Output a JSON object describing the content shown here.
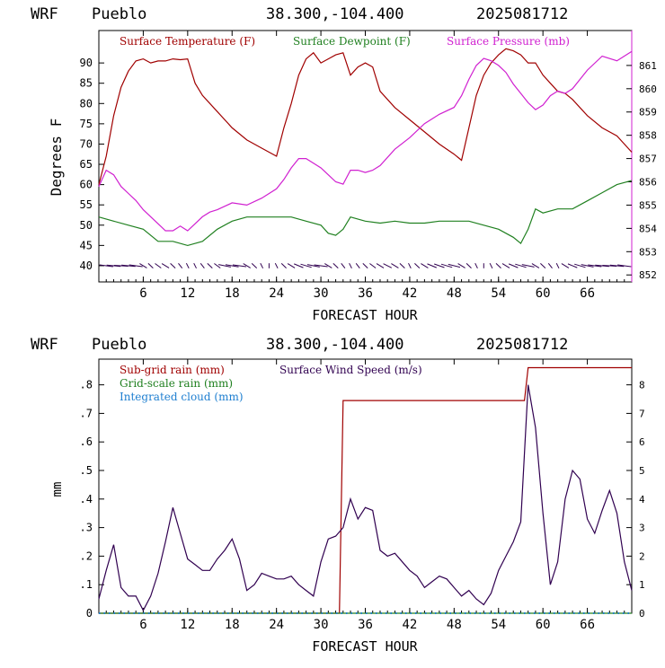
{
  "charts": [
    {
      "header": {
        "model": "WRF",
        "station": "Pueblo",
        "coords": "38.300,-104.400",
        "run": "2025081712"
      },
      "xlabel": "FORECAST HOUR",
      "ylabel": "Degrees F",
      "legend": [
        {
          "label": "Surface Temperature (F)",
          "color": "#a00000"
        },
        {
          "label": "Surface Dewpoint (F)",
          "color": "#208020"
        },
        {
          "label": "Surface Pressure (mb)",
          "color": "#d020d0"
        }
      ]
    },
    {
      "header": {
        "model": "WRF",
        "station": "Pueblo",
        "coords": "38.300,-104.400",
        "run": "2025081712"
      },
      "xlabel": "FORECAST HOUR",
      "ylabel": "mm",
      "legend": [
        {
          "label": "Sub-grid rain (mm)",
          "color": "#a00000"
        },
        {
          "label": "Grid-scale rain (mm)",
          "color": "#208020"
        },
        {
          "label": "Integrated cloud (mm)",
          "color": "#1f7fd0"
        },
        {
          "label": "Surface Wind Speed (m/s)",
          "color": "#300050"
        }
      ]
    }
  ],
  "chart_data": [
    {
      "type": "line",
      "xlim": [
        0,
        72
      ],
      "ylim": [
        36,
        98
      ],
      "y2lim": [
        851.7,
        862.5
      ],
      "x_ticks": [
        "6",
        "12",
        "18",
        "24",
        "30",
        "36",
        "42",
        "48",
        "54",
        "60",
        "66"
      ],
      "y_ticks": [
        "40",
        "45",
        "50",
        "55",
        "60",
        "65",
        "70",
        "75",
        "80",
        "85",
        "90"
      ],
      "y2_ticks": [
        "852",
        "853",
        "854",
        "855",
        "856",
        "857",
        "858",
        "859",
        "860",
        "861"
      ],
      "series": [
        {
          "name": "Surface Temperature (F)",
          "axis": "left",
          "color": "#a00000",
          "x": [
            0,
            1,
            2,
            3,
            4,
            5,
            6,
            7,
            8,
            9,
            10,
            11,
            12,
            13,
            14,
            16,
            18,
            20,
            22,
            24,
            25,
            26,
            27,
            28,
            29,
            30,
            31,
            32,
            33,
            34,
            35,
            36,
            37,
            38,
            40,
            42,
            44,
            46,
            48,
            49,
            50,
            51,
            52,
            53,
            54,
            55,
            56,
            57,
            58,
            59,
            60,
            61,
            62,
            63,
            64,
            66,
            68,
            70,
            72
          ],
          "y": [
            60,
            67,
            77,
            84,
            88,
            90.5,
            91,
            90,
            90.5,
            90.5,
            91,
            90.8,
            91,
            85,
            82,
            78,
            74,
            71,
            69,
            67,
            74,
            80,
            87,
            91,
            92.5,
            90,
            91,
            92,
            92.5,
            87,
            89,
            90,
            89,
            83,
            79,
            76,
            73,
            70,
            67.5,
            66,
            74,
            82,
            87,
            90,
            92,
            93.5,
            93,
            92,
            90,
            90,
            87,
            85,
            83,
            82.5,
            81,
            77,
            74,
            72,
            68
          ]
        },
        {
          "name": "Surface Dewpoint (F)",
          "axis": "left",
          "color": "#208020",
          "x": [
            0,
            2,
            4,
            6,
            8,
            10,
            12,
            14,
            16,
            18,
            20,
            22,
            24,
            26,
            28,
            30,
            31,
            32,
            33,
            34,
            36,
            38,
            40,
            42,
            44,
            46,
            48,
            50,
            52,
            54,
            56,
            57,
            58,
            59,
            60,
            62,
            64,
            66,
            68,
            70,
            72
          ],
          "y": [
            52,
            51,
            50,
            49,
            46,
            46,
            45,
            46,
            49,
            51,
            52,
            52,
            52,
            52,
            51,
            50,
            48,
            47.5,
            49,
            52,
            51,
            50.5,
            51,
            50.5,
            50.5,
            51,
            51,
            51,
            50,
            49,
            47,
            45.5,
            49,
            54,
            53,
            54,
            54,
            56,
            58,
            60,
            61
          ]
        },
        {
          "name": "Surface Pressure (mb)",
          "axis": "right",
          "color": "#d020d0",
          "x": [
            0,
            1,
            2,
            3,
            4,
            5,
            6,
            7,
            8,
            9,
            10,
            11,
            12,
            13,
            14,
            15,
            16,
            18,
            20,
            22,
            24,
            25,
            26,
            27,
            28,
            29,
            30,
            31,
            32,
            33,
            34,
            35,
            36,
            37,
            38,
            40,
            42,
            44,
            46,
            48,
            49,
            50,
            51,
            52,
            53,
            54,
            55,
            56,
            57,
            58,
            59,
            60,
            61,
            62,
            63,
            64,
            66,
            68,
            70,
            72
          ],
          "y": [
            855.8,
            856.5,
            856.3,
            855.8,
            855.5,
            855.2,
            854.8,
            854.5,
            854.2,
            853.9,
            853.9,
            854.1,
            853.9,
            854.2,
            854.5,
            854.7,
            854.8,
            855.1,
            855.0,
            855.3,
            855.7,
            856.1,
            856.6,
            857.0,
            857.0,
            856.8,
            856.6,
            856.3,
            856.0,
            855.9,
            856.5,
            856.5,
            856.4,
            856.5,
            856.7,
            857.4,
            857.9,
            858.5,
            858.9,
            859.2,
            859.7,
            860.4,
            861.0,
            861.3,
            861.2,
            861.0,
            860.7,
            860.2,
            859.8,
            859.4,
            859.1,
            859.3,
            859.7,
            859.9,
            859.8,
            860.0,
            860.8,
            861.4,
            861.2,
            861.6
          ]
        }
      ]
    },
    {
      "type": "line",
      "xlim": [
        0,
        72
      ],
      "ylim": [
        0,
        0.89
      ],
      "y2lim": [
        0,
        8.9
      ],
      "x_ticks": [
        "6",
        "12",
        "18",
        "24",
        "30",
        "36",
        "42",
        "48",
        "54",
        "60",
        "66"
      ],
      "y_ticks": [
        "0",
        ".1",
        ".2",
        ".3",
        ".4",
        ".5",
        ".6",
        ".7",
        ".8"
      ],
      "y2_ticks": [
        "0",
        "1",
        "2",
        "3",
        "4",
        "5",
        "6",
        "7",
        "8"
      ],
      "series": [
        {
          "name": "Sub-grid rain (mm)",
          "axis": "left",
          "color": "#a00000",
          "x": [
            0,
            32.5,
            33,
            57.5,
            58,
            72
          ],
          "y": [
            0,
            0,
            0.745,
            0.745,
            0.86,
            0.86
          ]
        },
        {
          "name": "Grid-scale rain (mm)",
          "axis": "left",
          "color": "#208020",
          "x": [
            0,
            72
          ],
          "y": [
            0,
            0
          ]
        },
        {
          "name": "Integrated cloud (mm)",
          "axis": "left",
          "color": "#1f7fd0",
          "x": [
            0,
            72
          ],
          "y": [
            0,
            0
          ]
        },
        {
          "name": "Surface Wind Speed (m/s)",
          "axis": "right",
          "color": "#300050",
          "x": [
            0,
            1,
            2,
            3,
            4,
            5,
            6,
            7,
            8,
            9,
            10,
            11,
            12,
            13,
            14,
            15,
            16,
            17,
            18,
            19,
            20,
            21,
            22,
            23,
            24,
            25,
            26,
            27,
            28,
            29,
            30,
            31,
            32,
            33,
            34,
            35,
            36,
            37,
            38,
            39,
            40,
            41,
            42,
            43,
            44,
            45,
            46,
            47,
            48,
            49,
            50,
            51,
            52,
            53,
            54,
            55,
            56,
            57,
            58,
            59,
            60,
            61,
            62,
            63,
            64,
            65,
            66,
            67,
            68,
            69,
            70,
            71,
            72
          ],
          "y": [
            0.5,
            1.5,
            2.4,
            0.9,
            0.6,
            0.6,
            0.1,
            0.6,
            1.4,
            2.5,
            3.7,
            2.8,
            1.9,
            1.7,
            1.5,
            1.5,
            1.9,
            2.2,
            2.6,
            1.9,
            0.8,
            1.0,
            1.4,
            1.3,
            1.2,
            1.2,
            1.3,
            1.0,
            0.8,
            0.6,
            1.8,
            2.6,
            2.7,
            3.0,
            4.0,
            3.3,
            3.7,
            3.6,
            2.2,
            2.0,
            2.1,
            1.8,
            1.5,
            1.3,
            0.9,
            1.1,
            1.3,
            1.2,
            0.9,
            0.6,
            0.8,
            0.5,
            0.3,
            0.7,
            1.5,
            2.0,
            2.5,
            3.2,
            8.0,
            6.5,
            3.5,
            1.0,
            1.8,
            4.0,
            5.0,
            4.7,
            3.3,
            2.8,
            3.6,
            4.3,
            3.5,
            1.8,
            0.8
          ]
        }
      ]
    }
  ]
}
